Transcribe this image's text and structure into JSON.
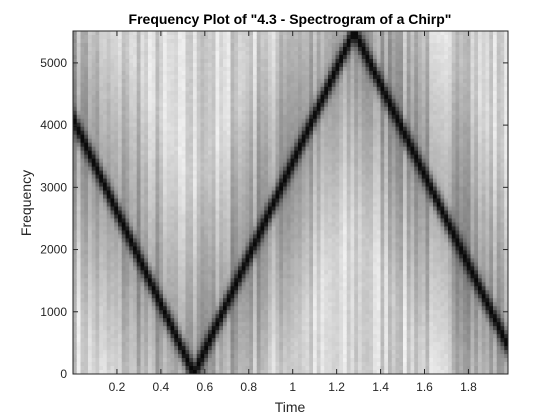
{
  "chart_data": {
    "type": "heatmap",
    "title": "Frequency Plot of \"4.3 - Spectrogram of a Chirp\"",
    "xlabel": "Time",
    "ylabel": "Frequency",
    "xlim": [
      0,
      1.98
    ],
    "ylim": [
      0,
      5512.5
    ],
    "x_ticks": [
      "0.2",
      "0.4",
      "0.6",
      "0.8",
      "1",
      "1.2",
      "1.4",
      "1.6",
      "1.8"
    ],
    "y_ticks": [
      "0",
      "1000",
      "2000",
      "3000",
      "4000",
      "5000"
    ],
    "colormap": "gray",
    "grid": false,
    "legend": "none",
    "chirp_ridge": {
      "description_points": [
        {
          "time": 0.0,
          "frequency": 4100
        },
        {
          "time": 0.55,
          "frequency": 0
        },
        {
          "time": 1.28,
          "frequency": 5512.5
        },
        {
          "time": 1.98,
          "frequency": 450
        }
      ]
    },
    "colors": {
      "ridge": "#000000",
      "background_low": "#9a9a9a",
      "background_high": "#e8e8e8",
      "axes": "#262626"
    }
  }
}
